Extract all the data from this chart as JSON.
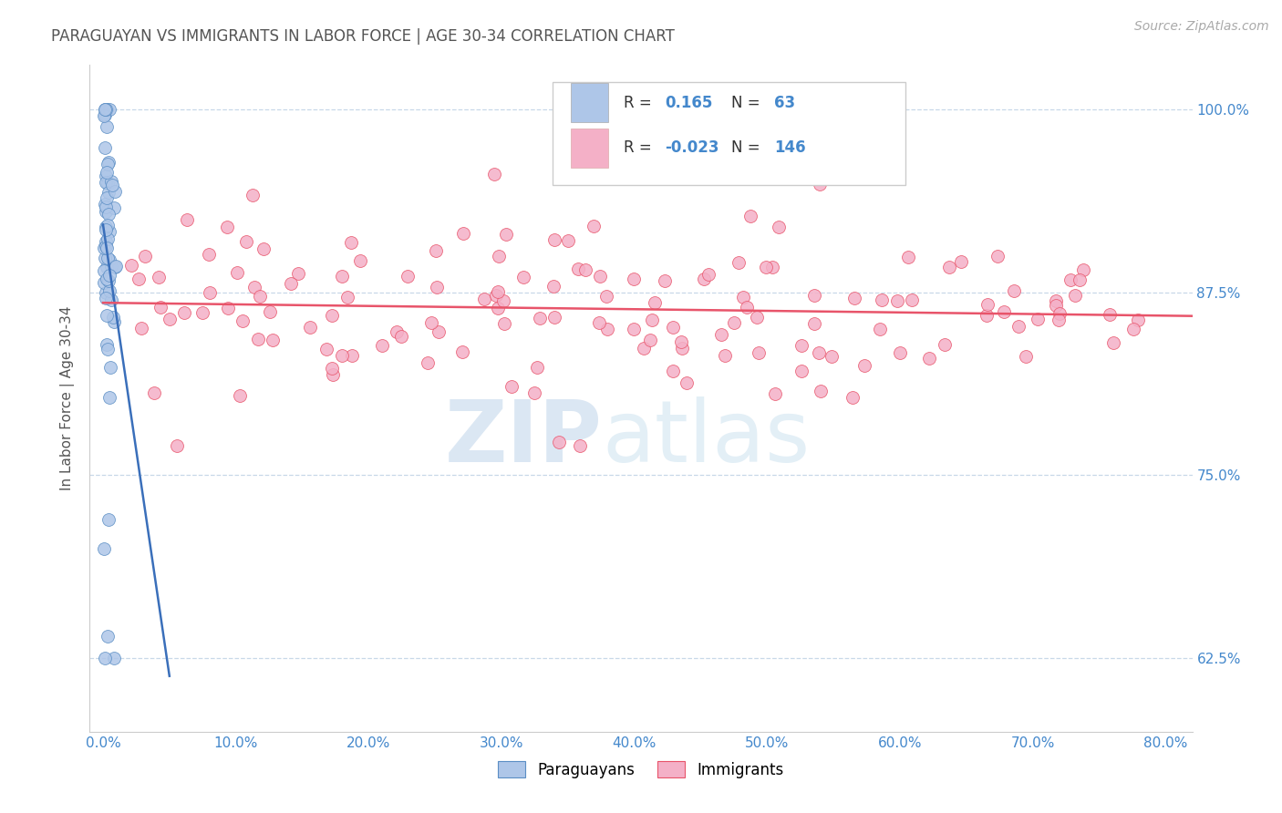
{
  "title": "PARAGUAYAN VS IMMIGRANTS IN LABOR FORCE | AGE 30-34 CORRELATION CHART",
  "source_text": "Source: ZipAtlas.com",
  "ylabel": "In Labor Force | Age 30-34",
  "x_tick_labels": [
    "0.0%",
    "10.0%",
    "20.0%",
    "30.0%",
    "40.0%",
    "50.0%",
    "60.0%",
    "70.0%",
    "80.0%"
  ],
  "x_tick_values": [
    0.0,
    0.1,
    0.2,
    0.3,
    0.4,
    0.5,
    0.6,
    0.7,
    0.8
  ],
  "y_tick_labels": [
    "62.5%",
    "75.0%",
    "87.5%",
    "100.0%"
  ],
  "y_tick_values": [
    0.625,
    0.75,
    0.875,
    1.0
  ],
  "xlim": [
    -0.01,
    0.82
  ],
  "ylim": [
    0.575,
    1.03
  ],
  "R_paraguayan": 0.165,
  "N_paraguayan": 63,
  "R_immigrant": -0.023,
  "N_immigrant": 146,
  "blue_color": "#aec6e8",
  "blue_edge": "#5b8ec4",
  "pink_color": "#f4b0c7",
  "pink_edge": "#e8546a",
  "trend_blue": "#3a6fba",
  "trend_pink": "#e8546a",
  "title_color": "#555555",
  "axis_color": "#4488cc",
  "source_color": "#aaaaaa",
  "watermark_zip_color": "#3a7bbf",
  "watermark_atlas_color": "#80b8d8",
  "legend_text_dark": "#333333",
  "legend_text_blue": "#4488cc"
}
